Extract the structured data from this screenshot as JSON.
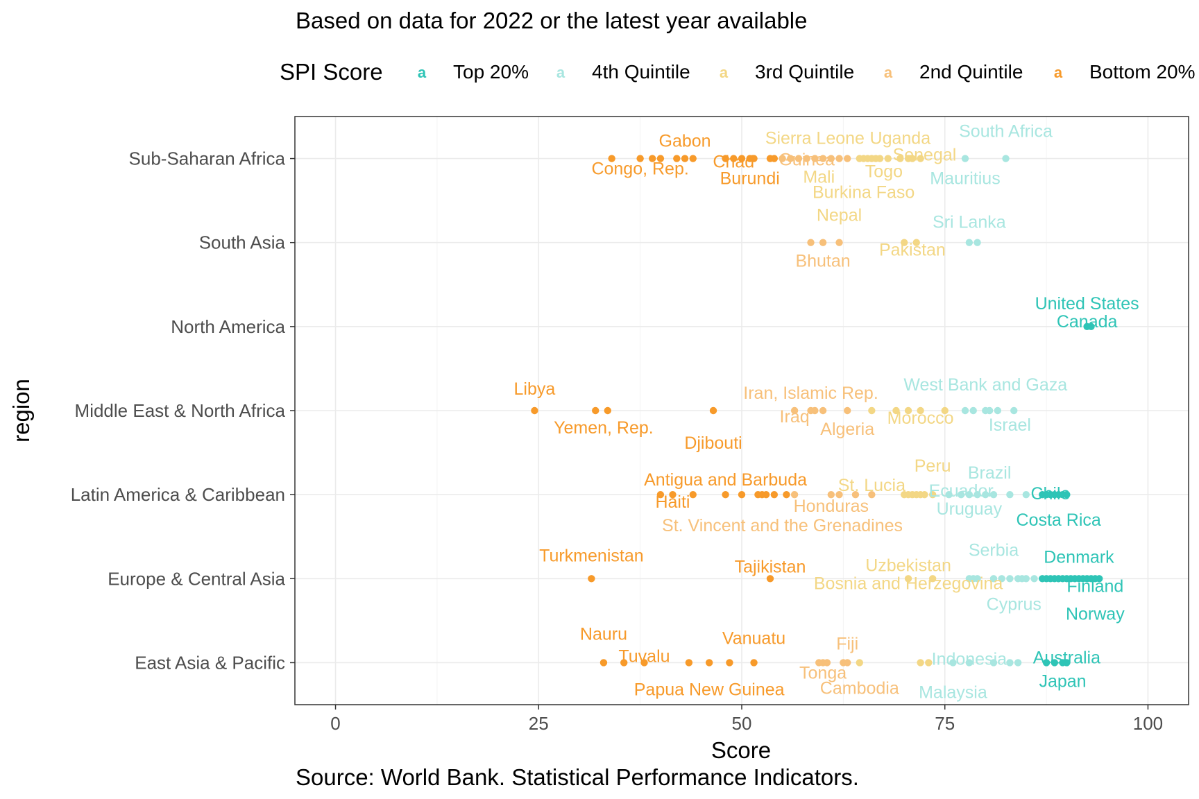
{
  "chart_data": {
    "type": "scatter",
    "subtitle": "Based on data for 2022 or the latest year available",
    "caption": "Source: World Bank. Statistical Performance Indicators.",
    "xlabel": "Score",
    "ylabel": "region",
    "xlim": [
      -5,
      105
    ],
    "x_ticks": [
      {
        "value": 0,
        "label": "0"
      },
      {
        "value": 25,
        "label": "25"
      },
      {
        "value": 50,
        "label": "50"
      },
      {
        "value": 75,
        "label": "75"
      },
      {
        "value": 100,
        "label": "100"
      }
    ],
    "grid": true,
    "legend": {
      "title": "SPI Score",
      "placement": "top",
      "glyph": "a"
    },
    "categories_top_to_bottom": [
      "Sub-Saharan Africa",
      "South Asia",
      "North America",
      "Middle East & North Africa",
      "Latin America & Caribbean",
      "Europe & Central Asia",
      "East Asia & Pacific"
    ],
    "series": [
      {
        "name": "Top 20%",
        "color": "#2ec4b6"
      },
      {
        "name": "4th Quintile",
        "color": "#a8e6e0"
      },
      {
        "name": "3rd Quintile",
        "color": "#f3d785"
      },
      {
        "name": "2nd Quintile",
        "color": "#f7c07a"
      },
      {
        "name": "Bottom 20%",
        "color": "#f79a2a"
      }
    ],
    "points": {
      "Sub-Saharan Africa": [
        [
          34,
          4
        ],
        [
          37.5,
          4
        ],
        [
          39,
          4
        ],
        [
          40,
          4
        ],
        [
          42,
          4
        ],
        [
          43,
          4
        ],
        [
          44,
          4
        ],
        [
          48,
          4
        ],
        [
          49,
          4
        ],
        [
          50,
          4
        ],
        [
          51,
          4
        ],
        [
          51.5,
          4
        ],
        [
          53.5,
          4
        ],
        [
          54,
          4
        ],
        [
          55,
          3
        ],
        [
          56,
          3
        ],
        [
          57,
          3
        ],
        [
          58,
          3
        ],
        [
          59,
          3
        ],
        [
          60,
          3
        ],
        [
          61,
          3
        ],
        [
          62,
          3
        ],
        [
          63,
          3
        ],
        [
          64.5,
          2
        ],
        [
          65,
          2
        ],
        [
          65.5,
          2
        ],
        [
          66,
          2
        ],
        [
          66.5,
          2
        ],
        [
          67,
          2
        ],
        [
          68,
          2
        ],
        [
          69.5,
          2
        ],
        [
          70.5,
          2
        ],
        [
          71,
          2
        ],
        [
          72,
          2
        ],
        [
          77.5,
          1
        ],
        [
          82.5,
          1
        ]
      ],
      "South Asia": [
        [
          58.5,
          3
        ],
        [
          60,
          3
        ],
        [
          62,
          3
        ],
        [
          70,
          2
        ],
        [
          71.5,
          2
        ],
        [
          78,
          1
        ],
        [
          79,
          1
        ]
      ],
      "North America": [
        [
          92.5,
          0
        ],
        [
          93,
          0
        ]
      ],
      "Middle East & North Africa": [
        [
          24.5,
          4
        ],
        [
          32,
          4
        ],
        [
          33.5,
          4
        ],
        [
          46.5,
          4
        ],
        [
          56.5,
          3
        ],
        [
          58.5,
          3
        ],
        [
          59,
          3
        ],
        [
          60,
          3
        ],
        [
          63,
          3
        ],
        [
          66,
          2
        ],
        [
          69,
          2
        ],
        [
          70.5,
          2
        ],
        [
          72,
          2
        ],
        [
          75,
          2
        ],
        [
          77.5,
          1
        ],
        [
          78.5,
          1
        ],
        [
          80,
          1
        ],
        [
          80.5,
          1
        ],
        [
          81.5,
          1
        ],
        [
          83.5,
          1
        ]
      ],
      "Latin America & Caribbean": [
        [
          40,
          4
        ],
        [
          41.5,
          4
        ],
        [
          44,
          4
        ],
        [
          48,
          4
        ],
        [
          50,
          4
        ],
        [
          52,
          4
        ],
        [
          52.5,
          4
        ],
        [
          53,
          4
        ],
        [
          54,
          4
        ],
        [
          55.5,
          4
        ],
        [
          56.5,
          3
        ],
        [
          61,
          3
        ],
        [
          62,
          3
        ],
        [
          64,
          3
        ],
        [
          66,
          3
        ],
        [
          70,
          2
        ],
        [
          70.5,
          2
        ],
        [
          71,
          2
        ],
        [
          71.5,
          2
        ],
        [
          72,
          2
        ],
        [
          72.5,
          2
        ],
        [
          73.5,
          2
        ],
        [
          75.5,
          1
        ],
        [
          77,
          1
        ],
        [
          78,
          1
        ],
        [
          79,
          1
        ],
        [
          80,
          1
        ],
        [
          81,
          1
        ],
        [
          83,
          1
        ],
        [
          85,
          1
        ],
        [
          87,
          0
        ],
        [
          87.5,
          0
        ],
        [
          88,
          0
        ],
        [
          88.5,
          0
        ],
        [
          89,
          0
        ],
        [
          89.5,
          0
        ],
        [
          90,
          0
        ]
      ],
      "Europe & Central Asia": [
        [
          31.5,
          4
        ],
        [
          53.5,
          4
        ],
        [
          70.5,
          2
        ],
        [
          73.5,
          2
        ],
        [
          78,
          1
        ],
        [
          78.5,
          1
        ],
        [
          79,
          1
        ],
        [
          81,
          1
        ],
        [
          82,
          1
        ],
        [
          83,
          1
        ],
        [
          84,
          1
        ],
        [
          84.5,
          1
        ],
        [
          85,
          1
        ],
        [
          86,
          1
        ],
        [
          87,
          0
        ],
        [
          87.5,
          0
        ],
        [
          88,
          0
        ],
        [
          88.5,
          0
        ],
        [
          89,
          0
        ],
        [
          89.5,
          0
        ],
        [
          90,
          0
        ],
        [
          90.5,
          0
        ],
        [
          91,
          0
        ],
        [
          91.5,
          0
        ],
        [
          92,
          0
        ],
        [
          92.5,
          0
        ],
        [
          93,
          0
        ],
        [
          93.5,
          0
        ],
        [
          94,
          0
        ]
      ],
      "East Asia & Pacific": [
        [
          33,
          4
        ],
        [
          35.5,
          4
        ],
        [
          38,
          4
        ],
        [
          43.5,
          4
        ],
        [
          46,
          4
        ],
        [
          48.5,
          4
        ],
        [
          51.5,
          4
        ],
        [
          59.5,
          3
        ],
        [
          60,
          3
        ],
        [
          60.5,
          3
        ],
        [
          62.5,
          3
        ],
        [
          63,
          3
        ],
        [
          64.5,
          2
        ],
        [
          72,
          2
        ],
        [
          73,
          2
        ],
        [
          76,
          1
        ],
        [
          78,
          1
        ],
        [
          81,
          1
        ],
        [
          83,
          1
        ],
        [
          84,
          1
        ],
        [
          87.5,
          0
        ],
        [
          88.5,
          0
        ],
        [
          89.5,
          0
        ],
        [
          90,
          0
        ]
      ]
    },
    "labels": [
      {
        "text": "Gabon",
        "x": 43,
        "region": "Sub-Saharan Africa",
        "series": 4,
        "dy": -26
      },
      {
        "text": "Congo, Rep.",
        "x": 37.5,
        "region": "Sub-Saharan Africa",
        "series": 4,
        "dy": 14
      },
      {
        "text": "Chad",
        "x": 49,
        "region": "Sub-Saharan Africa",
        "series": 4,
        "dy": 4
      },
      {
        "text": "Burundi",
        "x": 51,
        "region": "Sub-Saharan Africa",
        "series": 4,
        "dy": 28
      },
      {
        "text": "Guinea",
        "x": 58,
        "region": "Sub-Saharan Africa",
        "series": 3,
        "dy": 1
      },
      {
        "text": "Sierra Leone",
        "x": 59,
        "region": "Sub-Saharan Africa",
        "series": 2,
        "dy": -30
      },
      {
        "text": "Uganda",
        "x": 69.5,
        "region": "Sub-Saharan Africa",
        "series": 2,
        "dy": -30
      },
      {
        "text": "Senegal",
        "x": 72.5,
        "region": "Sub-Saharan Africa",
        "series": 2,
        "dy": -6
      },
      {
        "text": "Mali",
        "x": 59.5,
        "region": "Sub-Saharan Africa",
        "series": 2,
        "dy": 26
      },
      {
        "text": "Togo",
        "x": 67.5,
        "region": "Sub-Saharan Africa",
        "series": 2,
        "dy": 18
      },
      {
        "text": "Burkina Faso",
        "x": 65,
        "region": "Sub-Saharan Africa",
        "series": 2,
        "dy": 48
      },
      {
        "text": "South Africa",
        "x": 82.5,
        "region": "Sub-Saharan Africa",
        "series": 1,
        "dy": -40
      },
      {
        "text": "Mauritius",
        "x": 77.5,
        "region": "Sub-Saharan Africa",
        "series": 1,
        "dy": 28
      },
      {
        "text": "Nepal",
        "x": 62,
        "region": "South Asia",
        "series": 2,
        "dy": -40
      },
      {
        "text": "Sri Lanka",
        "x": 78,
        "region": "South Asia",
        "series": 1,
        "dy": -30
      },
      {
        "text": "Pakistan",
        "x": 71,
        "region": "South Asia",
        "series": 2,
        "dy": 10
      },
      {
        "text": "Bhutan",
        "x": 60,
        "region": "South Asia",
        "series": 3,
        "dy": 26
      },
      {
        "text": "United States",
        "x": 92.5,
        "region": "North America",
        "series": 0,
        "dy": -34
      },
      {
        "text": "Canada",
        "x": 92.5,
        "region": "North America",
        "series": 0,
        "dy": -8
      },
      {
        "text": "Libya",
        "x": 24.5,
        "region": "Middle East & North Africa",
        "series": 4,
        "dy": -32
      },
      {
        "text": "Yemen, Rep.",
        "x": 33,
        "region": "Middle East & North Africa",
        "series": 4,
        "dy": 24
      },
      {
        "text": "Djibouti",
        "x": 46.5,
        "region": "Middle East & North Africa",
        "series": 4,
        "dy": 46
      },
      {
        "text": "Iran, Islamic Rep.",
        "x": 58.5,
        "region": "Middle East & North Africa",
        "series": 3,
        "dy": -26
      },
      {
        "text": "Iraq",
        "x": 56.5,
        "region": "Middle East & North Africa",
        "series": 3,
        "dy": 8
      },
      {
        "text": "Algeria",
        "x": 63,
        "region": "Middle East & North Africa",
        "series": 3,
        "dy": 26
      },
      {
        "text": "Morocco",
        "x": 72,
        "region": "Middle East & North Africa",
        "series": 2,
        "dy": 10
      },
      {
        "text": "West Bank and Gaza",
        "x": 80,
        "region": "Middle East & North Africa",
        "series": 1,
        "dy": -38
      },
      {
        "text": "Israel",
        "x": 83,
        "region": "Middle East & North Africa",
        "series": 1,
        "dy": 20
      },
      {
        "text": "Peru",
        "x": 73.5,
        "region": "Latin America & Caribbean",
        "series": 2,
        "dy": -42
      },
      {
        "text": "Brazil",
        "x": 80.5,
        "region": "Latin America & Caribbean",
        "series": 1,
        "dy": -32
      },
      {
        "text": "Antigua and Barbuda",
        "x": 48,
        "region": "Latin America & Caribbean",
        "series": 4,
        "dy": -22
      },
      {
        "text": "St. Lucia",
        "x": 66,
        "region": "Latin America & Caribbean",
        "series": 2,
        "dy": -14
      },
      {
        "text": "Ecuador",
        "x": 77,
        "region": "Latin America & Caribbean",
        "series": 1,
        "dy": -6
      },
      {
        "text": "Chile",
        "x": 88,
        "region": "Latin America & Caribbean",
        "series": 0,
        "dy": -2
      },
      {
        "text": "Haiti",
        "x": 41.5,
        "region": "Latin America & Caribbean",
        "series": 4,
        "dy": 10
      },
      {
        "text": "Honduras",
        "x": 61,
        "region": "Latin America & Caribbean",
        "series": 3,
        "dy": 16
      },
      {
        "text": "Uruguay",
        "x": 78,
        "region": "Latin America & Caribbean",
        "series": 1,
        "dy": 20
      },
      {
        "text": "Costa Rica",
        "x": 89,
        "region": "Latin America & Caribbean",
        "series": 0,
        "dy": 36
      },
      {
        "text": "St. Vincent and the Grenadines",
        "x": 55,
        "region": "Latin America & Caribbean",
        "series": 3,
        "dy": 44
      },
      {
        "text": "Turkmenistan",
        "x": 31.5,
        "region": "Europe & Central Asia",
        "series": 4,
        "dy": -34
      },
      {
        "text": "Tajikistan",
        "x": 53.5,
        "region": "Europe & Central Asia",
        "series": 4,
        "dy": -18
      },
      {
        "text": "Uzbekistan",
        "x": 70.5,
        "region": "Europe & Central Asia",
        "series": 2,
        "dy": -20
      },
      {
        "text": "Serbia",
        "x": 81,
        "region": "Europe & Central Asia",
        "series": 1,
        "dy": -42
      },
      {
        "text": "Denmark",
        "x": 91.5,
        "region": "Europe & Central Asia",
        "series": 0,
        "dy": -32
      },
      {
        "text": "Bosnia and Herzegovina",
        "x": 70.5,
        "region": "Europe & Central Asia",
        "series": 2,
        "dy": 6
      },
      {
        "text": "Finland",
        "x": 93.5,
        "region": "Europe & Central Asia",
        "series": 0,
        "dy": 10
      },
      {
        "text": "Cyprus",
        "x": 83.5,
        "region": "Europe & Central Asia",
        "series": 1,
        "dy": 36
      },
      {
        "text": "Norway",
        "x": 93.5,
        "region": "Europe & Central Asia",
        "series": 0,
        "dy": 50
      },
      {
        "text": "Nauru",
        "x": 33,
        "region": "East Asia & Pacific",
        "series": 4,
        "dy": -42
      },
      {
        "text": "Vanuatu",
        "x": 51.5,
        "region": "East Asia & Pacific",
        "series": 4,
        "dy": -36
      },
      {
        "text": "Tuvalu",
        "x": 38,
        "region": "East Asia & Pacific",
        "series": 4,
        "dy": -10
      },
      {
        "text": "Fiji",
        "x": 63,
        "region": "East Asia & Pacific",
        "series": 3,
        "dy": -28
      },
      {
        "text": "Tonga",
        "x": 60,
        "region": "East Asia & Pacific",
        "series": 3,
        "dy": 14
      },
      {
        "text": "Papua New Guinea",
        "x": 46,
        "region": "East Asia & Pacific",
        "series": 4,
        "dy": 38
      },
      {
        "text": "Cambodia",
        "x": 64.5,
        "region": "East Asia & Pacific",
        "series": 3,
        "dy": 36
      },
      {
        "text": "Indonesia",
        "x": 78,
        "region": "East Asia & Pacific",
        "series": 1,
        "dy": -6
      },
      {
        "text": "Malaysia",
        "x": 76,
        "region": "East Asia & Pacific",
        "series": 1,
        "dy": 42
      },
      {
        "text": "Australia",
        "x": 90,
        "region": "East Asia & Pacific",
        "series": 0,
        "dy": -8
      },
      {
        "text": "Japan",
        "x": 89.5,
        "region": "East Asia & Pacific",
        "series": 0,
        "dy": 26
      }
    ]
  }
}
